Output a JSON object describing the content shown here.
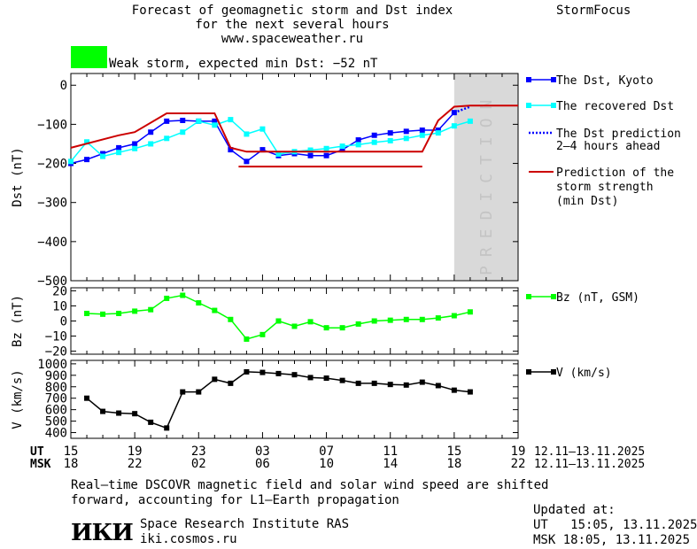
{
  "header": {
    "title_line1": "Forecast of geomagnetic storm and Dst index",
    "title_line2": "for the next several hours",
    "url": "www.spaceweather.ru",
    "brand": "StormFocus",
    "storm_label": "Weak storm, expected min Dst: −52 nT",
    "storm_color": "#00ff00"
  },
  "colors": {
    "dst_kyoto": "#0000ff",
    "recovered": "#00ffff",
    "prediction": "#cc0000",
    "bz": "#00ff00",
    "velocity": "#000000",
    "prediction_band": "#d9d9d9"
  },
  "legend": {
    "dst_kyoto": "The Dst, Kyoto",
    "recovered": "The recovered Dst",
    "dst_pred_1": "The Dst prediction",
    "dst_pred_2": "2–4 hours ahead",
    "storm_1": "Prediction of the",
    "storm_2": "storm strength",
    "storm_3": "(min Dst)",
    "bz": "Bz (nT, GSM)",
    "v": "V (km/s)"
  },
  "prediction_label": "PREDICTION",
  "time_axis": {
    "ut_label": "UT",
    "msk_label": "MSK",
    "ut_ticks": [
      "15",
      "19",
      "23",
      "03",
      "07",
      "11",
      "15",
      "19"
    ],
    "msk_ticks": [
      "18",
      "22",
      "02",
      "06",
      "10",
      "14",
      "18",
      "22"
    ],
    "date_range": "12.11–13.11.2025"
  },
  "footer": {
    "note_line1": "Real–time DSCOVR magnetic field and solar wind speed are shifted",
    "note_line2": "forward, accounting for L1–Earth propagation",
    "logo_text": "ИКИ",
    "institute": "Space Research Institute RAS",
    "site": "iki.cosmos.ru",
    "updated_label": "Updated at:",
    "updated_ut": "UT   15:05, 13.11.2025",
    "updated_msk": "MSK 18:05, 13.11.2025"
  },
  "chart_data": [
    {
      "type": "line",
      "title": "Forecast of geomagnetic storm and Dst index",
      "xlabel": "UT",
      "ylabel": "Dst (nT)",
      "xlim": [
        15,
        43
      ],
      "ylim": [
        -500,
        30
      ],
      "yticks": [
        0,
        -100,
        -200,
        -300,
        -400,
        -500
      ],
      "prediction_region": [
        39,
        43
      ],
      "series": [
        {
          "name": "The Dst, Kyoto",
          "color": "#0000ff",
          "marker": "square",
          "x": [
            15,
            16,
            17,
            18,
            19,
            20,
            21,
            22,
            23,
            24,
            25,
            26,
            27,
            28,
            29,
            30,
            31,
            32,
            33,
            34,
            35,
            36,
            37,
            38,
            39
          ],
          "y": [
            -200,
            -190,
            -175,
            -160,
            -150,
            -120,
            -92,
            -90,
            -92,
            -92,
            -165,
            -195,
            -165,
            -180,
            -175,
            -180,
            -180,
            -165,
            -140,
            -128,
            -122,
            -118,
            -115,
            -115,
            -70
          ]
        },
        {
          "name": "The recovered Dst",
          "color": "#00ffff",
          "marker": "square",
          "x": [
            15,
            16,
            17,
            18,
            19,
            20,
            21,
            22,
            23,
            24,
            25,
            26,
            27,
            28,
            29,
            30,
            31,
            32,
            33,
            34,
            35,
            36,
            37,
            38,
            39,
            40
          ],
          "y": [
            -195,
            -145,
            -182,
            -172,
            -162,
            -150,
            -136,
            -120,
            -92,
            -102,
            -88,
            -125,
            -112,
            -176,
            -170,
            -166,
            -162,
            -156,
            -152,
            -146,
            -142,
            -136,
            -128,
            -122,
            -104,
            -92
          ]
        },
        {
          "name": "The Dst prediction 2–4 hours ahead",
          "color": "#0000ff",
          "style": "dotted",
          "x": [
            39,
            40
          ],
          "y": [
            -70,
            -55
          ]
        },
        {
          "name": "Prediction of the storm strength (min Dst)",
          "color": "#cc0000",
          "style": "solid",
          "x": [
            15,
            18,
            19,
            21,
            24,
            25,
            26,
            31,
            32,
            36,
            37,
            38,
            39,
            40,
            43
          ],
          "y": [
            -160,
            -128,
            -120,
            -72,
            -72,
            -160,
            -170,
            -170,
            -170,
            -170,
            -170,
            -90,
            -55,
            -52,
            -52
          ]
        },
        {
          "name": "",
          "color": "#cc0000",
          "style": "solid",
          "x": [
            25.5,
            37
          ],
          "y": [
            -208,
            -208
          ]
        }
      ]
    },
    {
      "type": "line",
      "ylabel": "Bz (nT)",
      "xlim": [
        15,
        43
      ],
      "ylim": [
        -22,
        22
      ],
      "yticks": [
        20,
        10,
        0,
        -10,
        -20
      ],
      "series": [
        {
          "name": "Bz (nT, GSM)",
          "color": "#00ff00",
          "marker": "square",
          "x": [
            16,
            17,
            18,
            19,
            20,
            21,
            22,
            23,
            24,
            25,
            26,
            27,
            28,
            29,
            30,
            31,
            32,
            33,
            34,
            35,
            36,
            37,
            38,
            39,
            40
          ],
          "y": [
            5,
            4.5,
            5,
            6.5,
            7.5,
            15,
            17,
            12,
            7,
            1,
            -12,
            -9,
            0,
            -3.5,
            -0.5,
            -4.5,
            -4.5,
            -2,
            0,
            0.5,
            1,
            1,
            2,
            3.5,
            6
          ]
        }
      ]
    },
    {
      "type": "line",
      "ylabel": "V (km/s)",
      "xlim": [
        15,
        43
      ],
      "ylim": [
        350,
        1030
      ],
      "yticks": [
        1000,
        900,
        800,
        700,
        600,
        500,
        400
      ],
      "series": [
        {
          "name": "V (km/s)",
          "color": "#000000",
          "marker": "square",
          "x": [
            16,
            17,
            18,
            19,
            20,
            21,
            22,
            23,
            24,
            25,
            26,
            27,
            28,
            29,
            30,
            31,
            32,
            33,
            34,
            35,
            36,
            37,
            38,
            39,
            40
          ],
          "y": [
            700,
            585,
            570,
            565,
            490,
            440,
            755,
            755,
            865,
            830,
            930,
            925,
            915,
            905,
            880,
            875,
            855,
            830,
            830,
            820,
            815,
            840,
            810,
            770,
            755
          ]
        }
      ]
    }
  ]
}
